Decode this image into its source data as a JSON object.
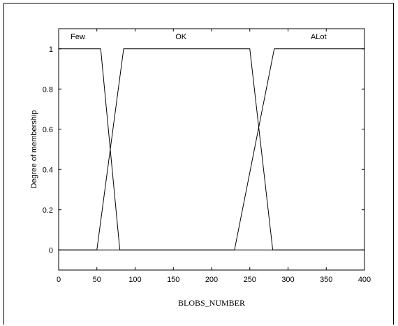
{
  "chart_data": {
    "type": "line",
    "title": "",
    "xlabel": "BLOBS_NUMBER",
    "ylabel": "Degree of membership",
    "xlim": [
      0,
      400
    ],
    "ylim": [
      -0.1,
      1.1
    ],
    "xticks": [
      0,
      50,
      100,
      150,
      200,
      250,
      300,
      350,
      400
    ],
    "yticks": [
      0,
      0.2,
      0.4,
      0.6,
      0.8,
      1
    ],
    "ytick_labels": [
      "0",
      "0.2",
      "0.4",
      "0.6",
      "0.8",
      "1"
    ],
    "grid": false,
    "series": [
      {
        "name": "Few",
        "x": [
          0,
          50,
          55,
          80,
          400
        ],
        "y": [
          1,
          1,
          1,
          0,
          0
        ],
        "label_x": 25
      },
      {
        "name": "OK",
        "x": [
          0,
          50,
          85,
          95,
          230,
          250,
          280,
          400
        ],
        "y": [
          0,
          0,
          1,
          1,
          1,
          1,
          0,
          0
        ],
        "label_x": 160
      },
      {
        "name": "ALot",
        "x": [
          0,
          230,
          282,
          400
        ],
        "y": [
          0,
          0,
          1,
          1
        ],
        "label_x": 340
      }
    ]
  }
}
